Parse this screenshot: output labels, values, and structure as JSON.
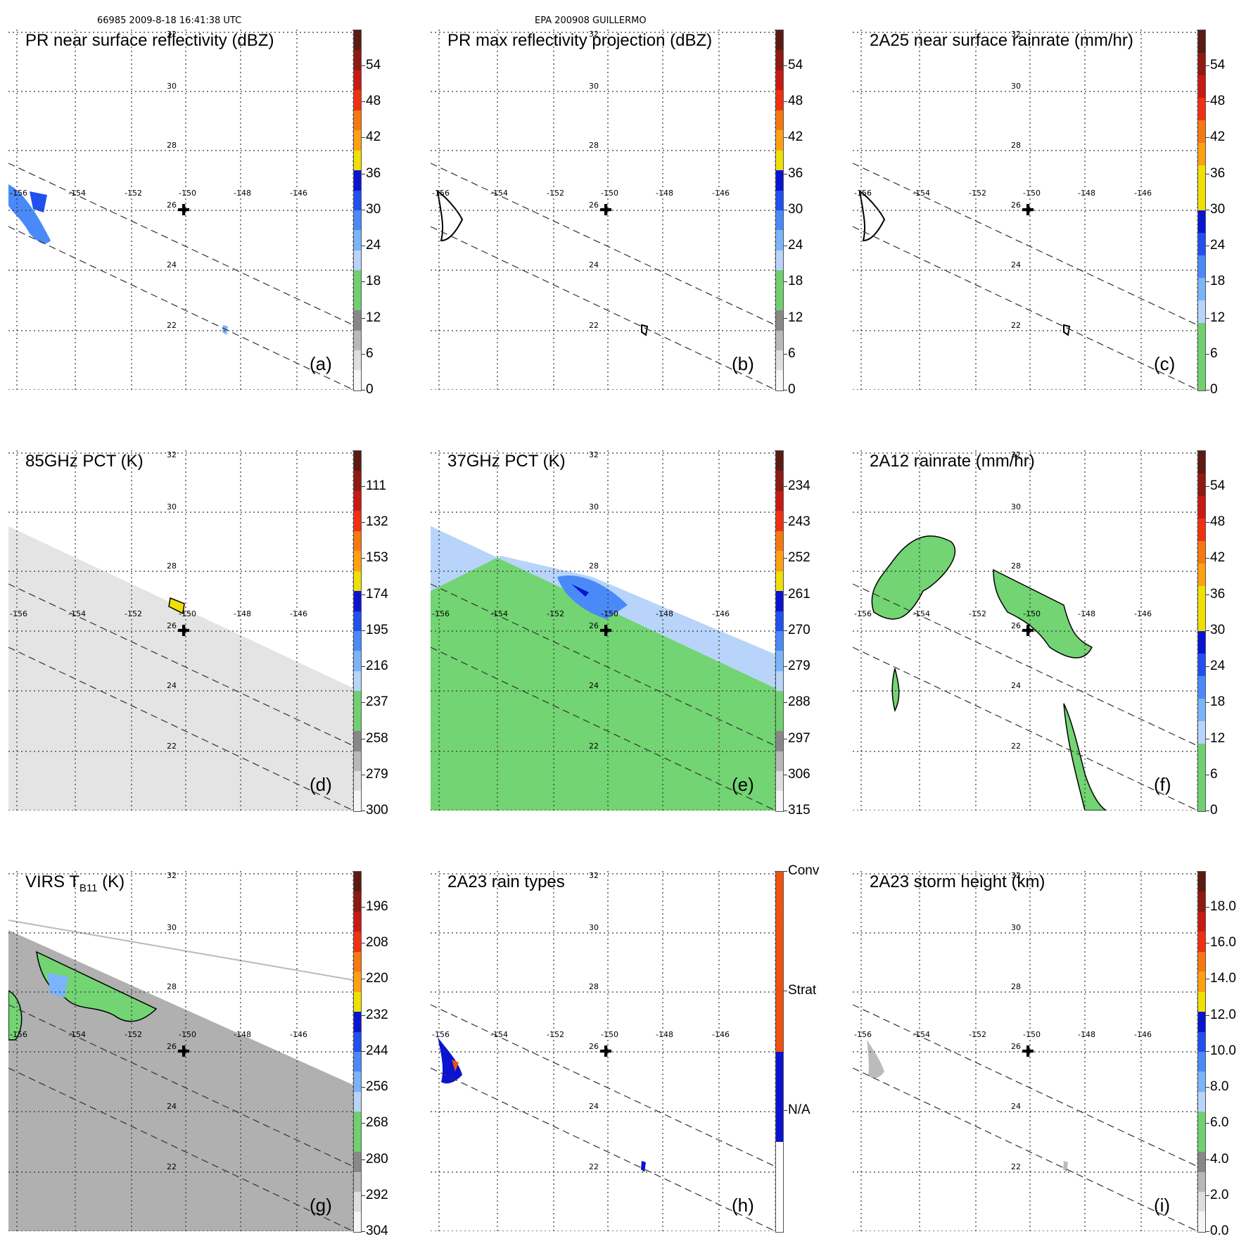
{
  "header": {
    "left": "66985 2009-8-18 16:41:38 UTC",
    "center": "EPA 200908 GUILLERMO"
  },
  "lat_labels": [
    "32",
    "30",
    "28",
    "26",
    "24",
    "22"
  ],
  "lon_labels": [
    "-156",
    "-154",
    "-152",
    "-150",
    "-148",
    "-146"
  ],
  "panels": [
    {
      "title": "PR near surface reflectivity (dBZ)",
      "label": "(a)",
      "ticks": [
        "54",
        "48",
        "42",
        "36",
        "30",
        "24",
        "18",
        "12",
        "6",
        "0"
      ],
      "colors": [
        "#5c1a12",
        "#8e1a12",
        "#c81a12",
        "#f03010",
        "#f87810",
        "#ffa010",
        "#f0e000",
        "#0a14d0",
        "#2050f0",
        "#4a8af8",
        "#7ab4fa",
        "#b8d4fa",
        "#70d070",
        "#70d070",
        "#888888",
        "#b8b8b8",
        "#dedede",
        "#f6f6f6"
      ]
    },
    {
      "title": "PR max reflectivity projection (dBZ)",
      "label": "(b)",
      "ticks": [
        "54",
        "48",
        "42",
        "36",
        "30",
        "24",
        "18",
        "12",
        "6",
        "0"
      ],
      "colors": [
        "#5c1a12",
        "#8e1a12",
        "#c81a12",
        "#f03010",
        "#f87810",
        "#ffa010",
        "#f0e000",
        "#0a14d0",
        "#2050f0",
        "#4a8af8",
        "#7ab4fa",
        "#b8d4fa",
        "#70d070",
        "#70d070",
        "#888888",
        "#b8b8b8",
        "#dedede",
        "#f6f6f6"
      ]
    },
    {
      "title": "2A25 near surface rainrate (mm/hr)",
      "label": "(c)",
      "ticks": [
        "54",
        "48",
        "42",
        "36",
        "30",
        "24",
        "18",
        "12",
        "6",
        "0"
      ],
      "colors": [
        "#5c1a12",
        "#8e1a12",
        "#c81a12",
        "#f03010",
        "#f87810",
        "#ffa010",
        "#f0e000",
        "#f0e000",
        "#0a14d0",
        "#2050f0",
        "#4a8af8",
        "#7ab4fa",
        "#b8d4fa",
        "#70d070",
        "#70d070",
        "#70d070"
      ]
    },
    {
      "title": "85GHz PCT (K)",
      "label": "(d)",
      "ticks": [
        "111",
        "132",
        "153",
        "174",
        "195",
        "216",
        "237",
        "258",
        "279",
        "300"
      ],
      "colors": [
        "#5c1a12",
        "#8e1a12",
        "#c81a12",
        "#f03010",
        "#f87810",
        "#ffa010",
        "#f0e000",
        "#0a14d0",
        "#2050f0",
        "#4a8af8",
        "#7ab4fa",
        "#b8d4fa",
        "#70d070",
        "#70d070",
        "#888888",
        "#b8b8b8",
        "#dedede",
        "#f6f6f6"
      ]
    },
    {
      "title": "37GHz PCT (K)",
      "label": "(e)",
      "ticks": [
        "234",
        "243",
        "252",
        "261",
        "270",
        "279",
        "288",
        "297",
        "306",
        "315"
      ],
      "colors": [
        "#5c1a12",
        "#8e1a12",
        "#c81a12",
        "#f03010",
        "#f87810",
        "#ffa010",
        "#f0e000",
        "#0a14d0",
        "#2050f0",
        "#4a8af8",
        "#7ab4fa",
        "#b8d4fa",
        "#70d070",
        "#70d070",
        "#888888",
        "#b8b8b8",
        "#dedede",
        "#f6f6f6"
      ]
    },
    {
      "title": "2A12 rainrate (mm/hr)",
      "label": "(f)",
      "ticks": [
        "54",
        "48",
        "42",
        "36",
        "30",
        "24",
        "18",
        "12",
        "6",
        "0"
      ],
      "colors": [
        "#5c1a12",
        "#8e1a12",
        "#c81a12",
        "#f03010",
        "#f87810",
        "#ffa010",
        "#f0e000",
        "#f0e000",
        "#0a14d0",
        "#2050f0",
        "#4a8af8",
        "#7ab4fa",
        "#b8d4fa",
        "#70d070",
        "#70d070",
        "#70d070"
      ]
    },
    {
      "title_main": "VIRS T",
      "title_sub": "B11",
      "title_end": " (K)",
      "label": "(g)",
      "ticks": [
        "196",
        "208",
        "220",
        "232",
        "244",
        "256",
        "268",
        "280",
        "292",
        "304"
      ],
      "colors": [
        "#5c1a12",
        "#8e1a12",
        "#c81a12",
        "#f03010",
        "#f87810",
        "#ffa010",
        "#f0e000",
        "#0a14d0",
        "#2050f0",
        "#4a8af8",
        "#7ab4fa",
        "#b8d4fa",
        "#70d070",
        "#70d070",
        "#888888",
        "#b8b8b8",
        "#dedede",
        "#f6f6f6"
      ]
    },
    {
      "title": "2A23 rain types",
      "label": "(h)",
      "ticks": [
        "Conv",
        "Strat",
        "N/A"
      ],
      "colors": [
        "#f05010",
        "#f05010",
        "#0a14d0",
        "#ffffff"
      ]
    },
    {
      "title": "2A23 storm height (km)",
      "label": "(i)",
      "ticks": [
        "18.0",
        "16.0",
        "14.0",
        "12.0",
        "10.0",
        "8.0",
        "6.0",
        "4.0",
        "2.0",
        "0.0"
      ],
      "colors": [
        "#5c1a12",
        "#8e1a12",
        "#c81a12",
        "#f03010",
        "#f87810",
        "#ffa010",
        "#f0e000",
        "#0a14d0",
        "#2050f0",
        "#4a8af8",
        "#7ab4fa",
        "#b8d4fa",
        "#70d070",
        "#70d070",
        "#888888",
        "#b8b8b8",
        "#dedede",
        "#f6f6f6"
      ]
    }
  ]
}
